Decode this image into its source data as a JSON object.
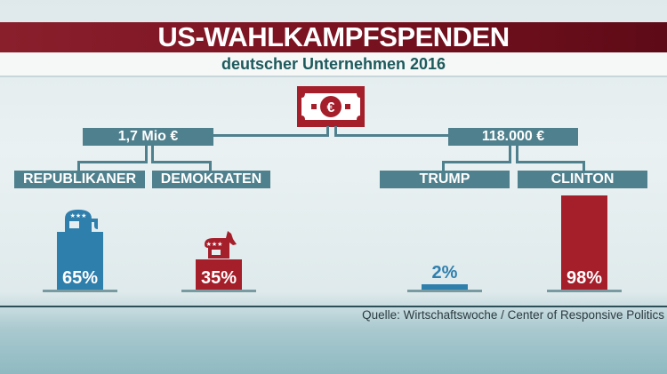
{
  "title": "US-WAHLKAMPFSPENDEN",
  "subtitle": "deutscher Unternehmen 2016",
  "icon": "euro-banknote-icon",
  "colors": {
    "republican": "#2f7fad",
    "democrat": "#a51f2b",
    "box": "#4f808d",
    "title_band": "#7a1220"
  },
  "groups": [
    {
      "total": "1,7 Mio €",
      "labels": [
        "REPUBLIKANER",
        "DEMOKRATEN"
      ]
    },
    {
      "total": "118.000 €",
      "labels": [
        "TRUMP",
        "CLINTON"
      ]
    }
  ],
  "chart_data": {
    "type": "bar",
    "categories": [
      "REPUBLIKANER",
      "DEMOKRATEN",
      "TRUMP",
      "CLINTON"
    ],
    "values": [
      65,
      35,
      2,
      98
    ],
    "value_labels": [
      "65%",
      "35%",
      "2%",
      "98%"
    ],
    "ylim": [
      0,
      100
    ],
    "grid": false
  },
  "source": "Quelle: Wirtschaftswoche / Center of Responsive Politics"
}
